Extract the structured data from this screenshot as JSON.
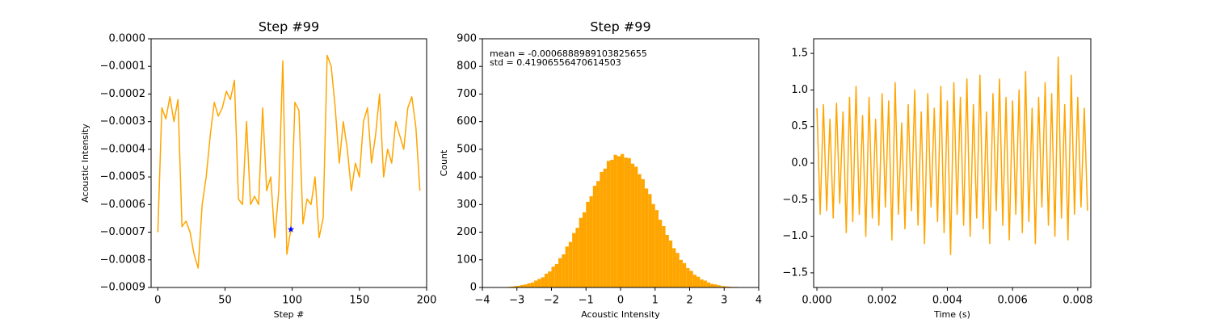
{
  "chart_data": [
    {
      "type": "line",
      "title": "Step #99",
      "xlabel": "Step #",
      "ylabel": "Acoustic Intensity",
      "color": "#ffa500",
      "x": [
        0,
        3,
        6,
        9,
        12,
        15,
        18,
        21,
        24,
        27,
        30,
        33,
        36,
        39,
        42,
        45,
        48,
        51,
        54,
        57,
        60,
        63,
        66,
        69,
        72,
        75,
        78,
        81,
        84,
        87,
        90,
        93,
        96,
        99,
        102,
        105,
        108,
        111,
        114,
        117,
        120,
        123,
        126,
        129,
        132,
        135,
        138,
        141,
        144,
        147,
        150,
        153,
        156,
        159,
        162,
        165,
        168,
        171,
        174,
        177,
        180,
        183,
        186,
        189,
        192,
        195
      ],
      "values": [
        -0.0007,
        -0.00025,
        -0.00029,
        -0.00021,
        -0.0003,
        -0.00022,
        -0.00068,
        -0.00066,
        -0.0007,
        -0.00078,
        -0.00083,
        -0.0006,
        -0.0005,
        -0.00035,
        -0.00023,
        -0.00028,
        -0.00025,
        -0.00019,
        -0.00022,
        -0.00015,
        -0.00058,
        -0.0006,
        -0.0003,
        -0.0006,
        -0.00057,
        -0.0006,
        -0.00025,
        -0.00055,
        -0.0005,
        -0.00072,
        -0.00055,
        -8e-05,
        -0.00078,
        -0.00069,
        -0.00023,
        -0.00026,
        -0.00067,
        -0.00058,
        -0.0006,
        -0.0005,
        -0.00072,
        -0.00065,
        -6e-05,
        -0.0001,
        -0.00025,
        -0.00045,
        -0.0003,
        -0.0004,
        -0.00055,
        -0.00045,
        -0.0005,
        -0.0003,
        -0.00025,
        -0.00045,
        -0.00035,
        -0.0002,
        -0.0005,
        -0.0004,
        -0.00045,
        -0.0003,
        -0.00035,
        -0.0004,
        -0.00025,
        -0.00021,
        -0.00032,
        -0.00055
      ],
      "highlight": {
        "x": 99,
        "y": -0.00069,
        "color": "#0000ff"
      },
      "xlim": [
        -5,
        200
      ],
      "xticks": [
        0,
        50,
        100,
        150,
        200
      ],
      "ylim": [
        -0.0009,
        0
      ],
      "yticks": [
        {
          "value": -0.0009,
          "label": "−0.0009"
        },
        {
          "value": -0.0008,
          "label": "−0.0008"
        },
        {
          "value": -0.0007,
          "label": "−0.0007"
        },
        {
          "value": -0.0006,
          "label": "−0.0006"
        },
        {
          "value": -0.0005,
          "label": "−0.0005"
        },
        {
          "value": -0.0004,
          "label": "−0.0004"
        },
        {
          "value": -0.0003,
          "label": "−0.0003"
        },
        {
          "value": -0.0002,
          "label": "−0.0002"
        },
        {
          "value": -0.0001,
          "label": "−0.0001"
        },
        {
          "value": 0,
          "label": "0.0000"
        }
      ]
    },
    {
      "type": "histogram",
      "title": "Step #99",
      "xlabel": "Acoustic Intensity",
      "ylabel": "Count",
      "color": "#ffa500",
      "annotations": [
        "mean = -0.0006888989103825655",
        "std = 0.41906556470614503"
      ],
      "bins": [
        -3.3,
        -3.2,
        -3.1,
        -3.0,
        -2.9,
        -2.8,
        -2.7,
        -2.6,
        -2.5,
        -2.4,
        -2.3,
        -2.2,
        -2.1,
        -2.0,
        -1.9,
        -1.8,
        -1.7,
        -1.6,
        -1.5,
        -1.4,
        -1.3,
        -1.2,
        -1.1,
        -1.0,
        -0.9,
        -0.8,
        -0.7,
        -0.6,
        -0.5,
        -0.4,
        -0.3,
        -0.2,
        -0.1,
        0,
        0.1,
        0.2,
        0.3,
        0.4,
        0.5,
        0.6,
        0.7,
        0.8,
        0.9,
        1.0,
        1.1,
        1.2,
        1.3,
        1.4,
        1.5,
        1.6,
        1.7,
        1.8,
        1.9,
        2.0,
        2.1,
        2.2,
        2.3,
        2.4,
        2.5,
        2.6,
        2.7,
        2.8,
        2.9,
        3.0,
        3.1,
        3.2,
        3.3,
        3.4
      ],
      "values": [
        2,
        3,
        5,
        6,
        9,
        11,
        15,
        18,
        25,
        31,
        37,
        50,
        58,
        75,
        85,
        106,
        120,
        148,
        165,
        197,
        216,
        252,
        272,
        310,
        330,
        368,
        385,
        418,
        430,
        458,
        462,
        480,
        475,
        483,
        470,
        468,
        448,
        437,
        410,
        392,
        358,
        338,
        302,
        280,
        245,
        222,
        190,
        170,
        142,
        125,
        100,
        88,
        70,
        60,
        46,
        39,
        29,
        25,
        18,
        13,
        11,
        8,
        5,
        4,
        3,
        2,
        2
      ],
      "xlim": [
        -4,
        4
      ],
      "xticks": [
        {
          "value": -4,
          "label": "−4"
        },
        {
          "value": -3,
          "label": "−3"
        },
        {
          "value": -2,
          "label": "−2"
        },
        {
          "value": -1,
          "label": "−1"
        },
        0,
        1,
        2,
        3,
        4
      ],
      "ylim": [
        0,
        900
      ],
      "yticks": [
        0,
        100,
        200,
        300,
        400,
        500,
        600,
        700,
        800,
        900
      ]
    },
    {
      "type": "line",
      "xlabel": "Time (s)",
      "color": "#ffa500",
      "x": [
        0,
        0.0001,
        0.0002,
        0.0003,
        0.0004,
        0.0005,
        0.0006,
        0.0007,
        0.0008,
        0.0009,
        0.001,
        0.0011,
        0.0012,
        0.0013,
        0.0014,
        0.0015,
        0.0016,
        0.0017,
        0.0018,
        0.0019,
        0.002,
        0.0021,
        0.0022,
        0.0023,
        0.0024,
        0.0025,
        0.0026,
        0.0027,
        0.0028,
        0.0029,
        0.003,
        0.0031,
        0.0032,
        0.0033,
        0.0034,
        0.0035,
        0.0036,
        0.0037,
        0.0038,
        0.0039,
        0.004,
        0.0041,
        0.0042,
        0.0043,
        0.0044,
        0.0045,
        0.0046,
        0.0047,
        0.0048,
        0.0049,
        0.005,
        0.0051,
        0.0052,
        0.0053,
        0.0054,
        0.0055,
        0.0056,
        0.0057,
        0.0058,
        0.0059,
        0.006,
        0.0061,
        0.0062,
        0.0063,
        0.0064,
        0.0065,
        0.0066,
        0.0067,
        0.0068,
        0.0069,
        0.007,
        0.0071,
        0.0072,
        0.0073,
        0.0074,
        0.0075,
        0.0076,
        0.0077,
        0.0078,
        0.0079,
        0.008,
        0.0081,
        0.0082,
        0.0083
      ],
      "values": [
        0.75,
        -0.7,
        0.8,
        -0.65,
        0.6,
        -0.75,
        0.82,
        -0.55,
        0.7,
        -0.95,
        0.9,
        -0.8,
        1.05,
        -0.7,
        0.65,
        -1.0,
        0.9,
        -0.75,
        0.6,
        -0.85,
        0.95,
        -0.6,
        0.85,
        -1.05,
        1.1,
        -0.7,
        0.55,
        -0.9,
        0.8,
        -0.65,
        1.0,
        -0.85,
        0.7,
        -1.1,
        0.95,
        -0.6,
        0.75,
        -0.8,
        1.05,
        -0.95,
        0.85,
        -1.25,
        1.1,
        -0.7,
        0.9,
        -0.85,
        1.15,
        -1.0,
        0.8,
        -0.75,
        1.2,
        -0.9,
        0.7,
        -1.1,
        0.95,
        -0.65,
        1.15,
        -0.85,
        0.9,
        -1.05,
        0.85,
        -0.7,
        1.0,
        -0.95,
        1.25,
        -0.8,
        0.75,
        -1.1,
        0.9,
        -0.6,
        1.1,
        -0.85,
        0.95,
        -1.0,
        1.45,
        -0.75,
        0.8,
        -1.05,
        1.2,
        -0.7,
        0.9,
        -0.6,
        0.75,
        -0.65
      ],
      "xlim": [
        -0.0001,
        0.0084
      ],
      "xticks": [
        {
          "value": 0,
          "label": "0.000"
        },
        {
          "value": 0.002,
          "label": "0.002"
        },
        {
          "value": 0.004,
          "label": "0.004"
        },
        {
          "value": 0.006,
          "label": "0.006"
        },
        {
          "value": 0.008,
          "label": "0.008"
        }
      ],
      "ylim": [
        -1.7,
        1.7
      ],
      "yticks": [
        {
          "value": -1.5,
          "label": "−1.5"
        },
        {
          "value": -1,
          "label": "−1.0"
        },
        {
          "value": -0.5,
          "label": "−0.5"
        },
        {
          "value": 0,
          "label": "0.0"
        },
        0.5,
        {
          "value": 1,
          "label": "1.0"
        },
        1.5
      ]
    }
  ]
}
